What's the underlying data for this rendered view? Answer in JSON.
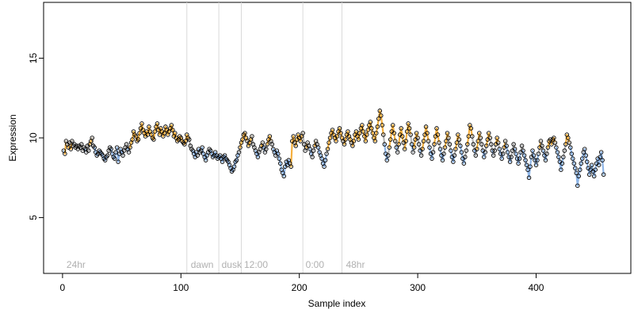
{
  "chart_data": {
    "type": "scatter",
    "xlabel": "Sample index",
    "ylabel": "Expression",
    "xlim": [
      -16,
      480
    ],
    "ylim": [
      1.5,
      18.5
    ],
    "x_ticks": [
      0,
      100,
      200,
      300,
      400
    ],
    "y_ticks": [
      5,
      10,
      15
    ],
    "grid": false,
    "legend": "none",
    "annotations": [
      {
        "x": 2,
        "label": "24hr"
      },
      {
        "x": 107,
        "label": "dawn"
      },
      {
        "x": 133,
        "label": "dusk"
      },
      {
        "x": 152,
        "label": "12:00"
      },
      {
        "x": 204,
        "label": "0:00"
      },
      {
        "x": 238,
        "label": "48hr"
      }
    ],
    "vertical_lines_x": [
      105,
      132,
      151,
      203,
      236
    ],
    "series": [
      {
        "x_start": 1,
        "values": [
          9.2,
          9.0,
          9.8,
          9.6,
          9.4,
          9.7,
          9.3,
          9.8,
          9.5,
          9.6,
          9.4,
          9.5,
          9.3,
          9.5,
          9.4,
          9.6,
          9.2,
          9.4,
          9.3,
          9.1,
          9.5,
          9.2,
          9.6,
          9.8,
          10.0,
          9.5,
          9.4,
          9.1,
          8.9,
          9.0,
          9.2,
          9.1,
          9.0,
          8.9,
          8.7,
          8.6,
          8.8,
          8.9,
          9.2,
          9.4,
          9.3,
          9.0,
          8.8,
          8.7,
          9.1,
          9.4,
          8.5,
          9.0,
          9.3,
          9.1,
          8.9,
          9.2,
          9.4,
          9.6,
          9.3,
          9.1,
          9.4,
          9.7,
          9.9,
          10.4,
          10.2,
          10.1,
          9.8,
          9.9,
          10.3,
          10.6,
          10.9,
          10.5,
          10.3,
          10.1,
          10.4,
          10.2,
          10.7,
          10.4,
          10.2,
          10.0,
          9.9,
          10.4,
          10.7,
          10.9,
          10.5,
          10.2,
          10.6,
          10.4,
          10.1,
          10.3,
          10.7,
          10.5,
          10.2,
          10.4,
          10.6,
          10.8,
          10.5,
          10.1,
          10.3,
          10.0,
          9.8,
          9.9,
          10.1,
          10.0,
          9.8,
          9.7,
          9.6,
          9.8,
          10.2,
          10.0,
          9.9,
          9.5,
          9.3,
          9.2,
          9.0,
          8.8,
          9.1,
          8.9,
          9.3,
          9.1,
          9.2,
          9.4,
          9.0,
          8.8,
          8.6,
          8.9,
          9.1,
          9.3,
          9.2,
          9.0,
          8.8,
          8.9,
          9.1,
          8.9,
          8.7,
          8.8,
          8.9,
          8.7,
          8.5,
          8.8,
          8.9,
          8.7,
          8.6,
          8.5,
          8.3,
          8.1,
          7.9,
          8.0,
          8.2,
          8.5,
          8.6,
          8.9,
          9.1,
          9.4,
          9.7,
          9.9,
          10.2,
          10.3,
          10.0,
          9.8,
          9.5,
          9.7,
          9.9,
          10.1,
          9.6,
          9.4,
          9.2,
          9.0,
          8.8,
          9.1,
          9.3,
          9.5,
          9.7,
          9.4,
          9.1,
          9.3,
          9.6,
          9.9,
          10.1,
          9.8,
          9.6,
          9.3,
          9.1,
          8.9,
          9.2,
          9.0,
          8.7,
          8.4,
          8.0,
          7.8,
          7.6,
          8.2,
          8.5,
          8.3,
          8.6,
          8.4,
          8.2,
          9.8,
          10.1,
          9.7,
          9.5,
          9.9,
          10.2,
          10.0,
          9.8,
          10.1,
          10.3,
          9.6,
          9.2,
          9.4,
          9.7,
          9.5,
          9.3,
          9.0,
          8.8,
          9.2,
          9.5,
          9.8,
          9.6,
          9.4,
          9.1,
          8.9,
          8.7,
          8.4,
          8.2,
          8.6,
          9.0,
          9.3,
          9.7,
          10.0,
          10.3,
          10.5,
          10.2,
          10.0,
          9.8,
          10.1,
          10.4,
          10.6,
          10.3,
          10.0,
          9.8,
          9.6,
          9.9,
          10.2,
          10.4,
          10.1,
          9.9,
          9.7,
          9.5,
          9.8,
          10.2,
          10.4,
          10.1,
          9.9,
          10.3,
          10.6,
          10.8,
          10.4,
          10.1,
          9.8,
          10.2,
          10.5,
          10.8,
          11.0,
          10.6,
          10.3,
          10.0,
          9.8,
          10.3,
          10.7,
          11.2,
          11.7,
          11.4,
          10.8,
          10.2,
          9.6,
          9.0,
          8.6,
          8.9,
          9.4,
          9.9,
          10.4,
          10.8,
          10.3,
          9.8,
          9.4,
          9.1,
          9.6,
          10.2,
          10.6,
          10.1,
          9.7,
          9.3,
          9.8,
          10.4,
          10.9,
          10.6,
          10.2,
          9.6,
          9.1,
          9.4,
          9.9,
          10.3,
          10.0,
          9.6,
          9.2,
          8.9,
          9.3,
          9.8,
          10.2,
          10.7,
          10.3,
          9.8,
          9.4,
          9.0,
          8.7,
          9.1,
          9.6,
          10.1,
          10.6,
          10.2,
          9.7,
          9.3,
          8.9,
          8.6,
          9.0,
          9.4,
          9.8,
          10.3,
          10.0,
          9.6,
          9.2,
          8.8,
          8.5,
          8.9,
          9.3,
          9.7,
          10.2,
          9.9,
          9.5,
          9.1,
          8.7,
          8.4,
          8.8,
          9.2,
          9.6,
          10.1,
          10.8,
          10.6,
          10.1,
          9.6,
          9.2,
          8.9,
          9.3,
          9.8,
          10.3,
          10.0,
          9.6,
          9.2,
          8.8,
          9.1,
          9.5,
          9.9,
          10.3,
          10.0,
          9.6,
          9.2,
          8.9,
          9.2,
          9.6,
          10.0,
          9.7,
          9.3,
          9.0,
          8.7,
          9.0,
          9.4,
          9.8,
          9.5,
          9.1,
          8.8,
          8.5,
          8.8,
          9.2,
          9.6,
          9.3,
          9.0,
          8.7,
          8.4,
          8.7,
          9.1,
          9.5,
          9.2,
          8.9,
          8.6,
          8.3,
          8.0,
          7.5,
          8.2,
          8.8,
          9.2,
          8.9,
          8.6,
          8.3,
          8.6,
          9.0,
          9.4,
          9.8,
          9.5,
          9.2,
          8.9,
          8.6,
          9.0,
          9.4,
          9.8,
          9.9,
          9.6,
          9.9,
          10.0,
          9.7,
          9.4,
          9.1,
          8.8,
          8.5,
          8.0,
          8.4,
          8.8,
          9.2,
          9.6,
          10.2,
          10.0,
          9.7,
          9.4,
          9.0,
          8.7,
          8.4,
          8.1,
          7.8,
          7.0,
          7.6,
          8.0,
          8.4,
          8.7,
          9.1,
          9.3,
          8.9,
          8.5,
          8.1,
          7.7,
          8.0,
          8.3,
          7.9,
          7.6,
          8.0,
          8.4,
          8.7,
          8.3,
          8.8,
          9.1,
          8.6,
          7.7
        ]
      }
    ]
  }
}
